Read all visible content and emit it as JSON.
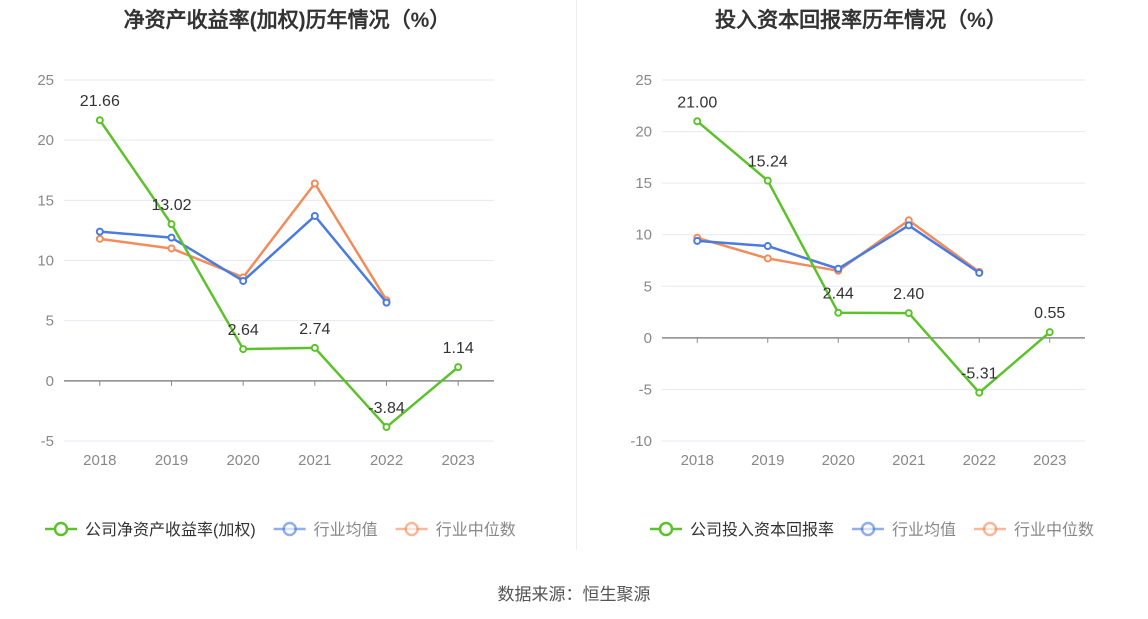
{
  "chart_data": [
    {
      "type": "line",
      "title": "净资产收益率(加权)历年情况（%）",
      "categories": [
        "2018",
        "2019",
        "2020",
        "2021",
        "2022",
        "2023"
      ],
      "ylim": [
        -5,
        25
      ],
      "yticks": [
        -5,
        0,
        5,
        10,
        15,
        20,
        25
      ],
      "grid": true,
      "legend_position": "bottom",
      "series": [
        {
          "name": "公司净资产收益率(加权)",
          "color": "#5cc22b",
          "values": [
            21.66,
            13.02,
            2.64,
            2.74,
            -3.84,
            1.14
          ],
          "labels": [
            "21.66",
            "13.02",
            "2.64",
            "2.74",
            "-3.84",
            "1.14"
          ]
        },
        {
          "name": "行业均值",
          "color": "#4a7be0",
          "values": [
            12.4,
            11.9,
            8.3,
            13.7,
            6.5,
            null
          ]
        },
        {
          "name": "行业中位数",
          "color": "#f28c5a",
          "values": [
            11.8,
            11.0,
            8.6,
            16.4,
            6.7,
            null
          ]
        }
      ]
    },
    {
      "type": "line",
      "title": "投入资本回报率历年情况（%）",
      "categories": [
        "2018",
        "2019",
        "2020",
        "2021",
        "2022",
        "2023"
      ],
      "ylim": [
        -10,
        25
      ],
      "yticks": [
        -10,
        -5,
        0,
        5,
        10,
        15,
        20,
        25
      ],
      "grid": true,
      "legend_position": "bottom",
      "series": [
        {
          "name": "公司投入资本回报率",
          "color": "#5cc22b",
          "values": [
            21.0,
            15.24,
            2.44,
            2.4,
            -5.31,
            0.55
          ],
          "labels": [
            "21.00",
            "15.24",
            "2.44",
            "2.40",
            "-5.31",
            "0.55"
          ]
        },
        {
          "name": "行业均值",
          "color": "#4a7be0",
          "values": [
            9.4,
            8.9,
            6.7,
            10.9,
            6.3,
            null
          ]
        },
        {
          "name": "行业中位数",
          "color": "#f28c5a",
          "values": [
            9.7,
            7.7,
            6.5,
            11.4,
            6.4,
            null
          ]
        }
      ]
    }
  ],
  "footer": {
    "source": "数据来源：恒生聚源"
  }
}
